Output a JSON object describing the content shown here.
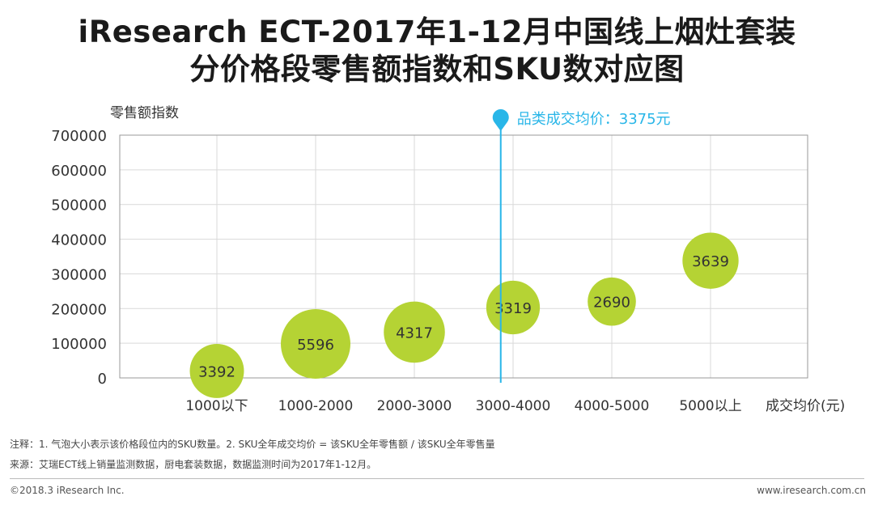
{
  "title": {
    "line1": "iResearch ECT-2017年1-12月中国线上烟灶套装",
    "line2": "分价格段零售额指数和SKU数对应图"
  },
  "chart_data": {
    "type": "bubble",
    "ylabel": "零售额指数",
    "xlabel": "成交均价(元)",
    "ylim": [
      0,
      700000
    ],
    "yticks": [
      0,
      100000,
      200000,
      300000,
      400000,
      500000,
      600000,
      700000
    ],
    "categories": [
      "1000以下",
      "1000-2000",
      "2000-3000",
      "3000-4000",
      "4000-5000",
      "5000以上"
    ],
    "values": [
      20000,
      98000,
      132000,
      203000,
      220000,
      338000
    ],
    "sizes": [
      3392,
      5596,
      4317,
      3319,
      2690,
      3639
    ],
    "bubble_labels": [
      "3392",
      "5596",
      "4317",
      "3319",
      "2690",
      "3639"
    ],
    "bubble_color": "#b5d334",
    "grid": true,
    "reference_line": {
      "label": "品类成交均价：3375元",
      "value": 3375,
      "color": "#29b6e8"
    }
  },
  "notes": {
    "note1": "注释：1. 气泡大小表示该价格段位内的SKU数量。2. SKU全年成交均价 = 该SKU全年零售额 / 该SKU全年零售量",
    "note2": "来源：艾瑞ECT线上销量监测数据，厨电套装数据，数据监测时间为2017年1-12月。"
  },
  "footer": {
    "copyright": "©2018.3 iResearch Inc.",
    "website": "www.iresearch.com.cn"
  }
}
